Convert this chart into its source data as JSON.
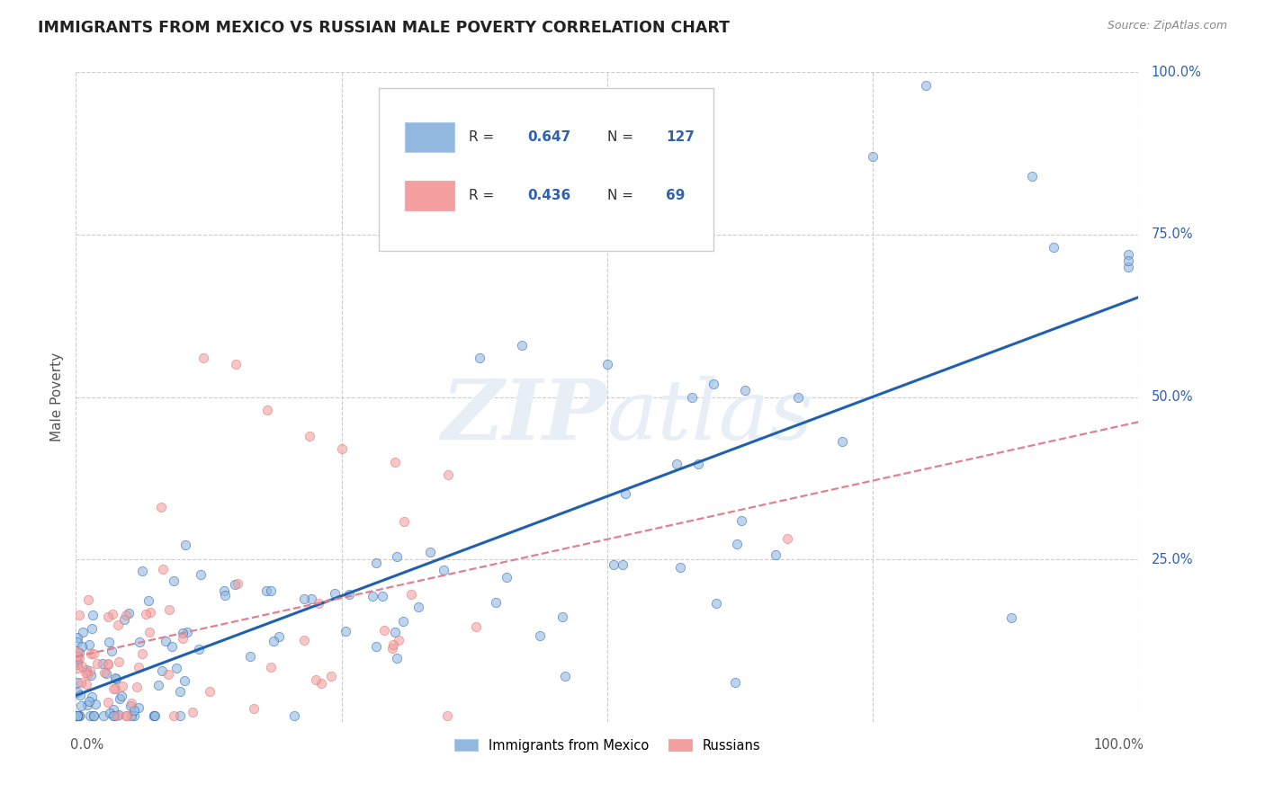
{
  "title": "IMMIGRANTS FROM MEXICO VS RUSSIAN MALE POVERTY CORRELATION CHART",
  "source": "Source: ZipAtlas.com",
  "ylabel": "Male Poverty",
  "mexico_R": 0.647,
  "mexico_N": 127,
  "russia_R": 0.436,
  "russia_N": 69,
  "mexico_color": "#92b8e0",
  "russia_color": "#f4a0a0",
  "mexico_line_color": "#2060b0",
  "russia_line_color": "#e08090",
  "legend_text_color": "#3060b0",
  "legend_label_color": "#444444",
  "title_color": "#222222",
  "source_color": "#888888",
  "background_color": "#ffffff",
  "grid_color": "#cccccc",
  "right_label_color": "#3060b0",
  "watermark_color": "#e8eef5"
}
